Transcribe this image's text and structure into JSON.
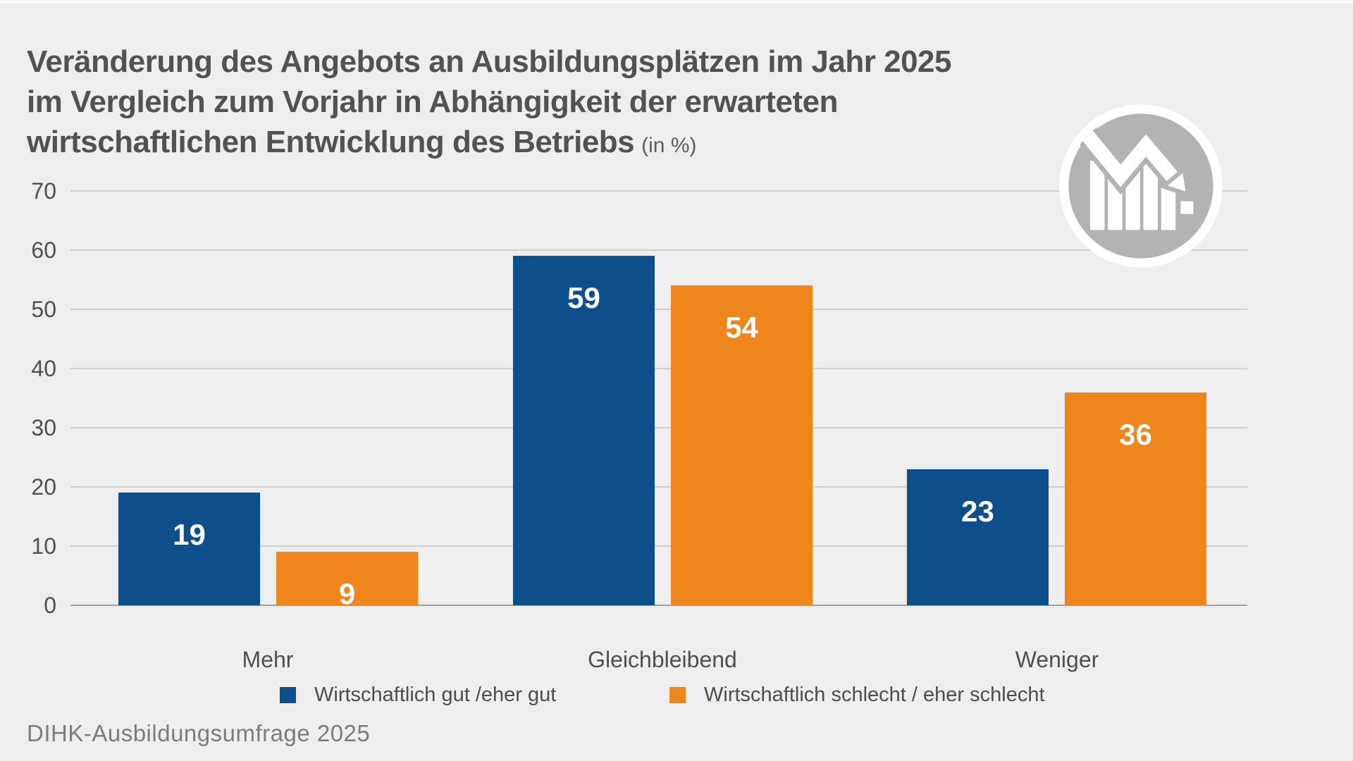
{
  "header": {
    "title_lines": [
      "Veränderung des Angebots an Ausbildungsplätzen im Jahr 2025",
      "im Vergleich zum Vorjahr in Abhängigkeit der erwarteten",
      "wirtschaftlichen Entwicklung des Betriebs"
    ],
    "unit_note": "(in %)"
  },
  "icon": {
    "name": "declining-bar-chart-icon",
    "circle_color": "#b3b3b3",
    "glyph_color": "#ffffff",
    "ring_color": "#ffffff"
  },
  "chart_data": {
    "type": "bar",
    "title": "Veränderung des Angebots an Ausbildungsplätzen im Jahr 2025 im Vergleich zum Vorjahr in Abhängigkeit der erwarteten wirtschaftlichen Entwicklung des Betriebs",
    "unit": "in %",
    "categories": [
      "Mehr",
      "Gleichbleibend",
      "Weniger"
    ],
    "series": [
      {
        "name": "Wirtschaftlich gut /eher gut",
        "color": "#0e4e8b",
        "values": [
          19,
          59,
          23
        ]
      },
      {
        "name": "Wirtschaftlich schlecht / eher schlecht",
        "color": "#ef861d",
        "values": [
          9,
          54,
          36
        ]
      }
    ],
    "ylim": [
      0,
      70
    ],
    "yticks": [
      0,
      10,
      20,
      30,
      40,
      50,
      60,
      70
    ],
    "grid": true,
    "legend_position": "bottom",
    "value_labels": "inside-top-white"
  },
  "footer": {
    "source": "DIHK-Ausbildungsumfrage 2025"
  },
  "colors": {
    "background": "#eeeeee",
    "title_text": "#525252",
    "axis_text": "#4f4f4f",
    "gridline": "#cdcdcd",
    "baseline": "#9f9f9f",
    "bar_label": "#ffffff"
  }
}
